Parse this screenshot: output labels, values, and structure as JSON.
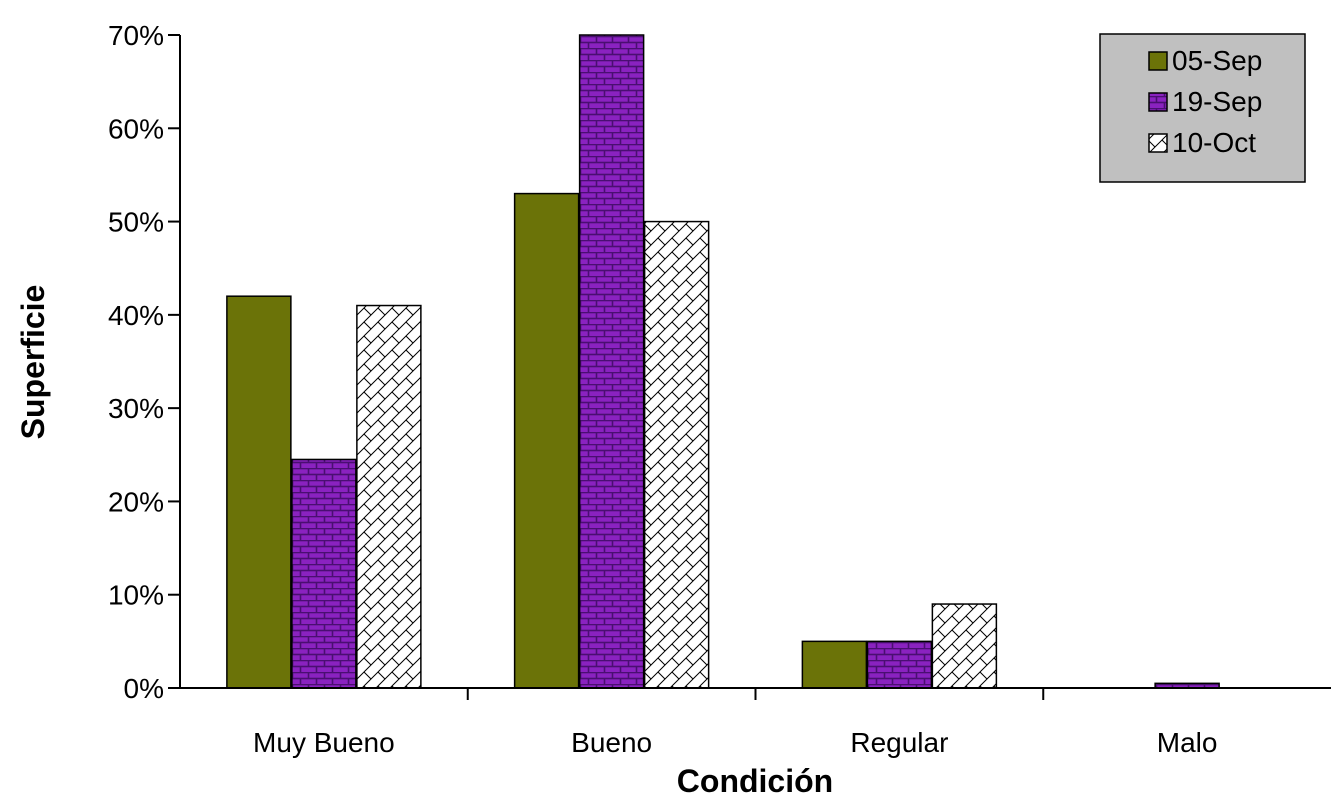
{
  "chart_data": {
    "type": "bar",
    "categories": [
      "Muy Bueno",
      "Bueno",
      "Regular",
      "Malo"
    ],
    "series": [
      {
        "name": "05-Sep",
        "values": [
          42,
          53,
          5,
          0
        ],
        "color": "#6b7308",
        "pattern": "solid"
      },
      {
        "name": "19-Sep",
        "values": [
          24.5,
          70,
          5,
          0.5
        ],
        "color": "#8a22c0",
        "pattern": "brick"
      },
      {
        "name": "10-Oct",
        "values": [
          41,
          50,
          9,
          0
        ],
        "color": "#ffffff",
        "pattern": "diagonal"
      }
    ],
    "xlabel": "Condición",
    "ylabel": "Superficie",
    "ylim": [
      0,
      70
    ],
    "yticks": [
      0,
      10,
      20,
      30,
      40,
      50,
      60,
      70
    ],
    "ytick_suffix": "%",
    "grid": false,
    "legend_position": "top-right",
    "legend_background": "#c0c0c0"
  }
}
